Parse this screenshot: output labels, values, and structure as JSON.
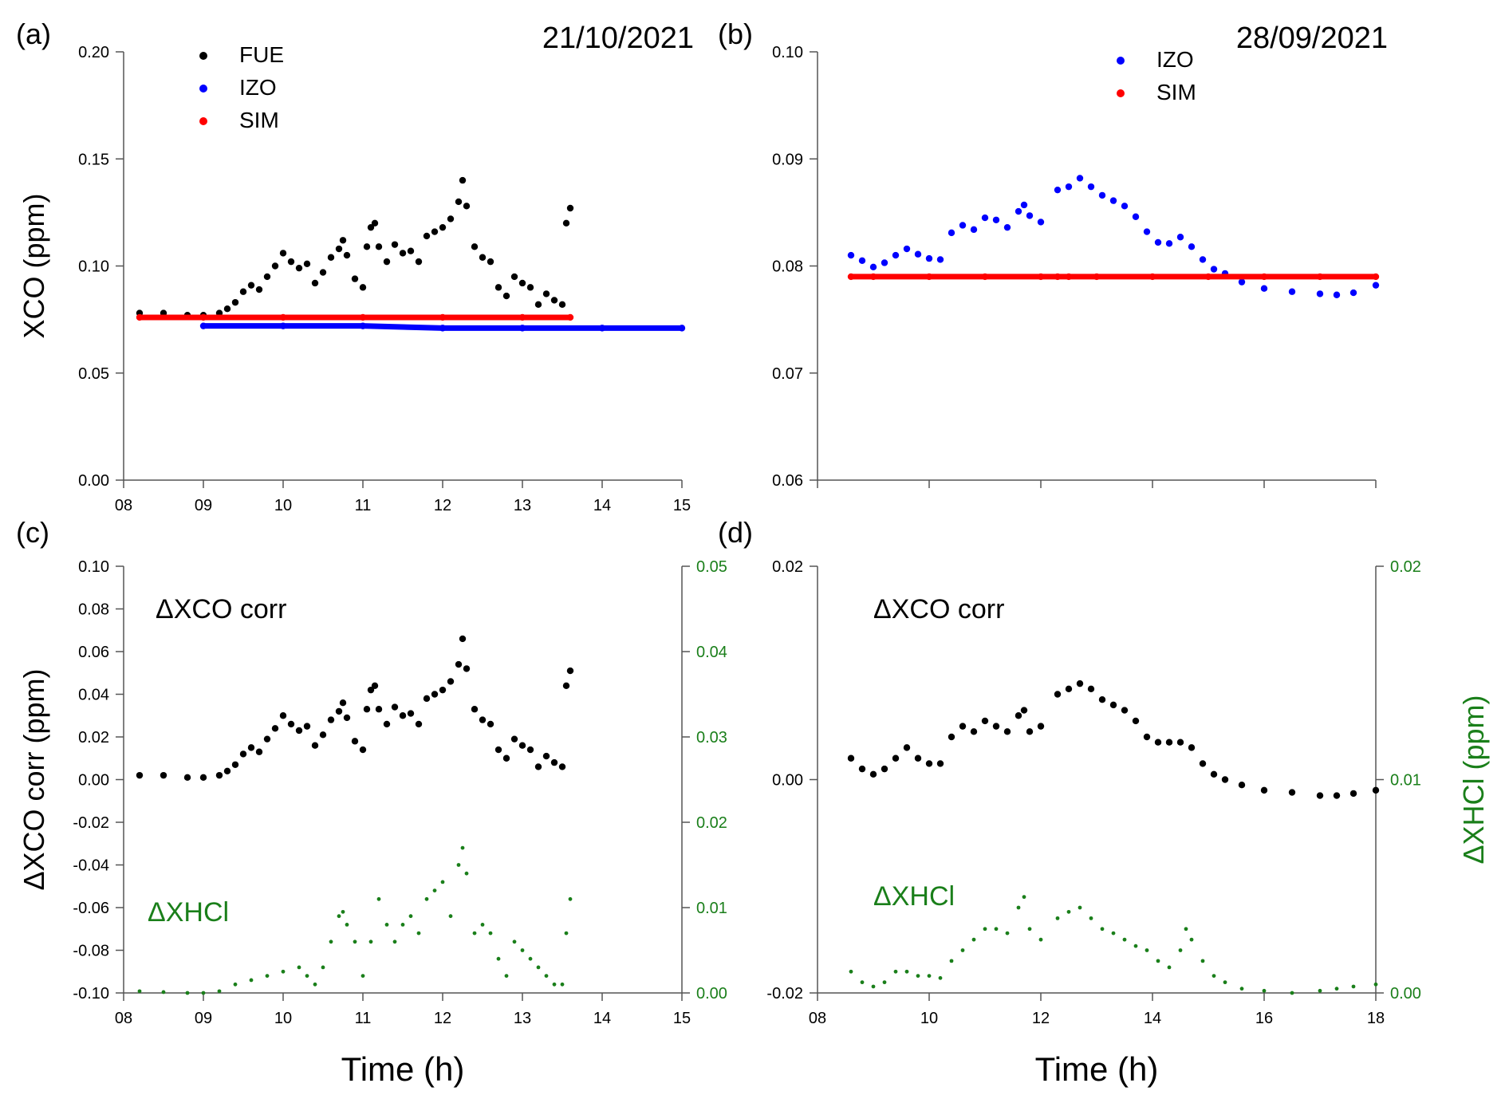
{
  "figure": {
    "x_axis_title": "Time (h)",
    "colors": {
      "black": "#000000",
      "blue": "#0000ff",
      "red": "#ff0000",
      "green": "#1a7f1a"
    }
  },
  "chart_data": [
    {
      "panel_label": "(a)",
      "date_label": "21/10/2021",
      "type": "scatter",
      "ylabel": "XCO (ppm)",
      "xlabel": "",
      "xlim": [
        8,
        15
      ],
      "ylim": [
        0,
        0.2
      ],
      "x_ticks": [
        "08",
        "09",
        "10",
        "11",
        "12",
        "13",
        "14",
        "15"
      ],
      "y_ticks": [
        "0.00",
        "0.05",
        "0.10",
        "0.15",
        "0.20"
      ],
      "legend": {
        "position": "top-left"
      },
      "series": [
        {
          "name": "FUE",
          "color": "#000000",
          "x": [
            8.2,
            8.5,
            8.8,
            9.0,
            9.2,
            9.3,
            9.4,
            9.5,
            9.6,
            9.7,
            9.8,
            9.9,
            10.0,
            10.1,
            10.2,
            10.3,
            10.4,
            10.5,
            10.6,
            10.7,
            10.75,
            10.8,
            10.9,
            11.0,
            11.05,
            11.1,
            11.15,
            11.2,
            11.3,
            11.4,
            11.5,
            11.6,
            11.7,
            11.8,
            11.9,
            12.0,
            12.1,
            12.2,
            12.25,
            12.3,
            12.4,
            12.5,
            12.6,
            12.7,
            12.8,
            12.9,
            13.0,
            13.1,
            13.2,
            13.3,
            13.4,
            13.5,
            13.55,
            13.6
          ],
          "y": [
            0.078,
            0.078,
            0.077,
            0.077,
            0.078,
            0.08,
            0.083,
            0.088,
            0.091,
            0.089,
            0.095,
            0.1,
            0.106,
            0.102,
            0.099,
            0.101,
            0.092,
            0.097,
            0.104,
            0.108,
            0.112,
            0.105,
            0.094,
            0.09,
            0.109,
            0.118,
            0.12,
            0.109,
            0.102,
            0.11,
            0.106,
            0.107,
            0.102,
            0.114,
            0.116,
            0.118,
            0.122,
            0.13,
            0.14,
            0.128,
            0.109,
            0.104,
            0.102,
            0.09,
            0.086,
            0.095,
            0.092,
            0.09,
            0.082,
            0.087,
            0.084,
            0.082,
            0.12,
            0.127
          ]
        },
        {
          "name": "IZO",
          "color": "#0000ff",
          "x": [
            9.0,
            10.0,
            11.0,
            12.0,
            13.0,
            14.0,
            15.0
          ],
          "y": [
            0.072,
            0.072,
            0.072,
            0.071,
            0.071,
            0.071,
            0.071
          ]
        },
        {
          "name": "SIM",
          "color": "#ff0000",
          "x": [
            8.2,
            9.0,
            10.0,
            11.0,
            12.0,
            13.0,
            13.6
          ],
          "y": [
            0.076,
            0.076,
            0.076,
            0.076,
            0.076,
            0.076,
            0.076
          ]
        }
      ]
    },
    {
      "panel_label": "(b)",
      "date_label": "28/09/2021",
      "type": "scatter",
      "ylabel": "",
      "xlabel": "",
      "xlim": [
        8,
        18
      ],
      "ylim": [
        0.06,
        0.1
      ],
      "x_ticks": [],
      "y_ticks": [
        "0.06",
        "0.07",
        "0.08",
        "0.09",
        "0.10"
      ],
      "legend": {
        "position": "top-center"
      },
      "series": [
        {
          "name": "IZO",
          "color": "#0000ff",
          "x": [
            8.6,
            8.8,
            9.0,
            9.2,
            9.4,
            9.6,
            9.8,
            10.0,
            10.2,
            10.4,
            10.6,
            10.8,
            11.0,
            11.2,
            11.4,
            11.6,
            11.7,
            11.8,
            12.0,
            12.3,
            12.5,
            12.7,
            12.9,
            13.1,
            13.3,
            13.5,
            13.7,
            13.9,
            14.1,
            14.3,
            14.5,
            14.7,
            14.9,
            15.1,
            15.3,
            15.6,
            16.0,
            16.5,
            17.0,
            17.3,
            17.6,
            18.0
          ],
          "y": [
            0.081,
            0.0805,
            0.0799,
            0.0803,
            0.081,
            0.0816,
            0.0811,
            0.0807,
            0.0806,
            0.0831,
            0.0838,
            0.0834,
            0.0845,
            0.0843,
            0.0836,
            0.0851,
            0.0857,
            0.0847,
            0.0841,
            0.0871,
            0.0874,
            0.0882,
            0.0874,
            0.0866,
            0.0861,
            0.0856,
            0.0846,
            0.0832,
            0.0822,
            0.0821,
            0.0827,
            0.0818,
            0.0806,
            0.0797,
            0.0793,
            0.0785,
            0.0779,
            0.0776,
            0.0774,
            0.0773,
            0.0775,
            0.0782
          ]
        },
        {
          "name": "SIM",
          "color": "#ff0000",
          "x": [
            8.6,
            9.0,
            10.0,
            11.0,
            12.0,
            12.3,
            12.5,
            13.0,
            14.0,
            15.0,
            16.0,
            17.0,
            18.0
          ],
          "y": [
            0.079,
            0.079,
            0.079,
            0.079,
            0.079,
            0.079,
            0.079,
            0.079,
            0.079,
            0.079,
            0.079,
            0.079,
            0.079
          ]
        }
      ]
    },
    {
      "panel_label": "(c)",
      "type": "scatter",
      "ylabel": "ΔXCO corr (ppm)",
      "ylabel_right": "",
      "xlabel": "Time (h)",
      "xlim": [
        8,
        15
      ],
      "ylim": [
        -0.1,
        0.1
      ],
      "ylim_right": [
        0,
        0.05
      ],
      "x_ticks": [
        "08",
        "09",
        "10",
        "11",
        "12",
        "13",
        "14",
        "15"
      ],
      "y_ticks": [
        "-0.10",
        "-0.08",
        "-0.06",
        "-0.04",
        "-0.02",
        "0.00",
        "0.02",
        "0.04",
        "0.06",
        "0.08",
        "0.10"
      ],
      "y_ticks_right": [
        "0.00",
        "0.01",
        "0.02",
        "0.03",
        "0.04",
        "0.05"
      ],
      "annotations": [
        "ΔXCO corr",
        "ΔXHCl"
      ],
      "series": [
        {
          "name": "ΔXCO corr",
          "axis": "left",
          "color": "#000000",
          "x": [
            8.2,
            8.5,
            8.8,
            9.0,
            9.2,
            9.3,
            9.4,
            9.5,
            9.6,
            9.7,
            9.8,
            9.9,
            10.0,
            10.1,
            10.2,
            10.3,
            10.4,
            10.5,
            10.6,
            10.7,
            10.75,
            10.8,
            10.9,
            11.0,
            11.05,
            11.1,
            11.15,
            11.2,
            11.3,
            11.4,
            11.5,
            11.6,
            11.7,
            11.8,
            11.9,
            12.0,
            12.1,
            12.2,
            12.25,
            12.3,
            12.4,
            12.5,
            12.6,
            12.7,
            12.8,
            12.9,
            13.0,
            13.1,
            13.2,
            13.3,
            13.4,
            13.5,
            13.55,
            13.6
          ],
          "y": [
            0.002,
            0.002,
            0.001,
            0.001,
            0.002,
            0.004,
            0.007,
            0.012,
            0.015,
            0.013,
            0.019,
            0.024,
            0.03,
            0.026,
            0.023,
            0.025,
            0.016,
            0.021,
            0.028,
            0.032,
            0.036,
            0.029,
            0.018,
            0.014,
            0.033,
            0.042,
            0.044,
            0.033,
            0.026,
            0.034,
            0.03,
            0.031,
            0.026,
            0.038,
            0.04,
            0.042,
            0.046,
            0.054,
            0.066,
            0.052,
            0.033,
            0.028,
            0.026,
            0.014,
            0.01,
            0.019,
            0.016,
            0.014,
            0.006,
            0.011,
            0.008,
            0.006,
            0.044,
            0.051
          ]
        },
        {
          "name": "ΔXHCl",
          "axis": "right",
          "color": "#1a7f1a",
          "x": [
            8.2,
            8.5,
            8.8,
            9.0,
            9.2,
            9.4,
            9.6,
            9.8,
            10.0,
            10.2,
            10.3,
            10.4,
            10.5,
            10.6,
            10.7,
            10.75,
            10.8,
            10.9,
            11.0,
            11.1,
            11.2,
            11.3,
            11.4,
            11.5,
            11.6,
            11.7,
            11.8,
            11.9,
            12.0,
            12.1,
            12.2,
            12.25,
            12.3,
            12.4,
            12.5,
            12.6,
            12.7,
            12.8,
            12.9,
            13.0,
            13.1,
            13.2,
            13.3,
            13.4,
            13.5,
            13.55,
            13.6
          ],
          "y": [
            0.0002,
            0.0001,
            0.0,
            0.0,
            0.0002,
            0.001,
            0.0015,
            0.002,
            0.0025,
            0.003,
            0.002,
            0.001,
            0.003,
            0.006,
            0.009,
            0.0095,
            0.008,
            0.006,
            0.002,
            0.006,
            0.011,
            0.008,
            0.006,
            0.008,
            0.009,
            0.007,
            0.011,
            0.012,
            0.013,
            0.009,
            0.015,
            0.017,
            0.014,
            0.007,
            0.008,
            0.007,
            0.004,
            0.002,
            0.006,
            0.005,
            0.004,
            0.003,
            0.002,
            0.001,
            0.001,
            0.007,
            0.011
          ]
        }
      ]
    },
    {
      "panel_label": "(d)",
      "type": "scatter",
      "ylabel": "",
      "ylabel_right": "ΔXHCl (ppm)",
      "xlabel": "Time (h)",
      "xlim": [
        8,
        18
      ],
      "ylim": [
        -0.02,
        0.02
      ],
      "ylim_right": [
        0,
        0.02
      ],
      "x_ticks": [
        "08",
        "10",
        "12",
        "14",
        "16",
        "18"
      ],
      "y_ticks": [
        "-0.02",
        "0.00",
        "0.02"
      ],
      "y_ticks_right": [
        "0.00",
        "0.01",
        "0.02"
      ],
      "annotations": [
        "ΔXCO corr",
        "ΔXHCl"
      ],
      "series": [
        {
          "name": "ΔXCO corr",
          "axis": "left",
          "color": "#000000",
          "x": [
            8.6,
            8.8,
            9.0,
            9.2,
            9.4,
            9.6,
            9.8,
            10.0,
            10.2,
            10.4,
            10.6,
            10.8,
            11.0,
            11.2,
            11.4,
            11.6,
            11.7,
            11.8,
            12.0,
            12.3,
            12.5,
            12.7,
            12.9,
            13.1,
            13.3,
            13.5,
            13.7,
            13.9,
            14.1,
            14.3,
            14.5,
            14.7,
            14.9,
            15.1,
            15.3,
            15.6,
            16.0,
            16.5,
            17.0,
            17.3,
            17.6,
            18.0
          ],
          "y": [
            0.002,
            0.001,
            0.0005,
            0.001,
            0.002,
            0.003,
            0.002,
            0.0015,
            0.0015,
            0.004,
            0.005,
            0.0045,
            0.0055,
            0.005,
            0.0045,
            0.006,
            0.0065,
            0.0045,
            0.005,
            0.008,
            0.0085,
            0.009,
            0.0085,
            0.0075,
            0.007,
            0.0065,
            0.0055,
            0.004,
            0.0035,
            0.0035,
            0.0035,
            0.003,
            0.0015,
            0.0005,
            0.0,
            -0.0005,
            -0.001,
            -0.0012,
            -0.0015,
            -0.0015,
            -0.0013,
            -0.001
          ]
        },
        {
          "name": "ΔXHCl",
          "axis": "right",
          "color": "#1a7f1a",
          "x": [
            8.6,
            8.8,
            9.0,
            9.2,
            9.4,
            9.6,
            9.8,
            10.0,
            10.2,
            10.4,
            10.6,
            10.8,
            11.0,
            11.2,
            11.4,
            11.6,
            11.7,
            11.8,
            12.0,
            12.3,
            12.5,
            12.7,
            12.9,
            13.1,
            13.3,
            13.5,
            13.7,
            13.9,
            14.1,
            14.3,
            14.5,
            14.6,
            14.7,
            14.9,
            15.1,
            15.3,
            15.6,
            16.0,
            16.5,
            17.0,
            17.3,
            17.6,
            18.0
          ],
          "y": [
            0.001,
            0.0005,
            0.0003,
            0.0005,
            0.001,
            0.001,
            0.0008,
            0.0008,
            0.0007,
            0.0015,
            0.002,
            0.0025,
            0.003,
            0.003,
            0.0028,
            0.004,
            0.0045,
            0.003,
            0.0025,
            0.0035,
            0.0038,
            0.004,
            0.0035,
            0.003,
            0.0028,
            0.0025,
            0.0022,
            0.002,
            0.0015,
            0.0012,
            0.002,
            0.003,
            0.0025,
            0.0015,
            0.0008,
            0.0005,
            0.0002,
            0.0001,
            0.0,
            0.0001,
            0.0002,
            0.0003,
            0.0004
          ]
        }
      ]
    }
  ]
}
